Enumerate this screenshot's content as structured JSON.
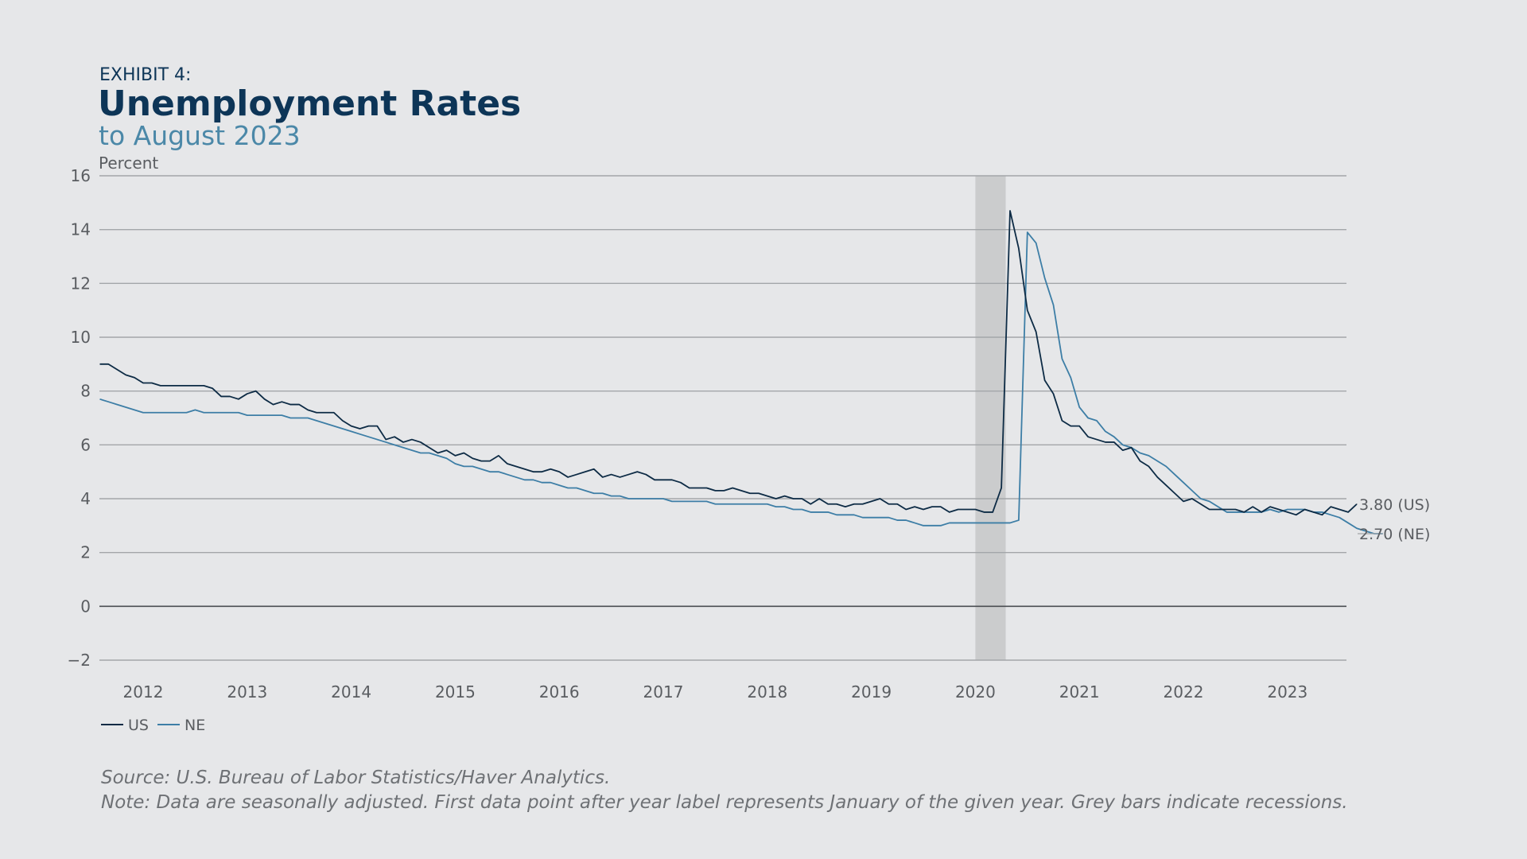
{
  "header": {
    "exhibit": "EXHIBIT 4:",
    "title": "Unemployment Rates",
    "subtitle": "to August 2023"
  },
  "colors": {
    "background": "#e6e7e9",
    "US": "#0d2b45",
    "NE": "#3d7ea6",
    "recession": "#cbcccd",
    "grid": "#a3a6a9"
  },
  "chart_data": {
    "type": "line",
    "ylabel": "Percent",
    "ylim": [
      -2,
      16
    ],
    "yticks": [
      "16",
      "14",
      "12",
      "10",
      "8",
      "6",
      "4",
      "2",
      "0",
      "−2"
    ],
    "xticks": [
      "2012",
      "2013",
      "2014",
      "2015",
      "2016",
      "2017",
      "2018",
      "2019",
      "2020",
      "2021",
      "2022",
      "2023"
    ],
    "grid": true,
    "legend": "bottom-left",
    "recession": {
      "start": "2020-02",
      "end": "2020-04"
    },
    "end_labels": [
      "3.80 (US)",
      "2.70 (NE)"
    ],
    "series": [
      {
        "name": "US",
        "x_start": "2011-08",
        "values": [
          9.0,
          9.0,
          8.8,
          8.6,
          8.5,
          8.3,
          8.3,
          8.2,
          8.2,
          8.2,
          8.2,
          8.2,
          8.2,
          8.1,
          7.8,
          7.8,
          7.7,
          7.9,
          8.0,
          7.7,
          7.5,
          7.6,
          7.5,
          7.5,
          7.3,
          7.2,
          7.2,
          7.2,
          6.9,
          6.7,
          6.6,
          6.7,
          6.7,
          6.2,
          6.3,
          6.1,
          6.2,
          6.1,
          5.9,
          5.7,
          5.8,
          5.6,
          5.7,
          5.5,
          5.4,
          5.4,
          5.6,
          5.3,
          5.2,
          5.1,
          5.0,
          5.0,
          5.1,
          5.0,
          4.8,
          4.9,
          5.0,
          5.1,
          4.8,
          4.9,
          4.8,
          4.9,
          5.0,
          4.9,
          4.7,
          4.7,
          4.7,
          4.6,
          4.4,
          4.4,
          4.4,
          4.3,
          4.3,
          4.4,
          4.3,
          4.2,
          4.2,
          4.1,
          4.0,
          4.1,
          4.0,
          4.0,
          3.8,
          4.0,
          3.8,
          3.8,
          3.7,
          3.8,
          3.8,
          3.9,
          4.0,
          3.8,
          3.8,
          3.6,
          3.7,
          3.6,
          3.7,
          3.7,
          3.5,
          3.6,
          3.6,
          3.6,
          3.5,
          3.5,
          4.4,
          14.7,
          13.3,
          11.0,
          10.2,
          8.4,
          7.9,
          6.9,
          6.7,
          6.7,
          6.3,
          6.2,
          6.1,
          6.1,
          5.8,
          5.9,
          5.4,
          5.2,
          4.8,
          4.5,
          4.2,
          3.9,
          4.0,
          3.8,
          3.6,
          3.6,
          3.6,
          3.6,
          3.5,
          3.7,
          3.5,
          3.7,
          3.6,
          3.5,
          3.4,
          3.6,
          3.5,
          3.4,
          3.7,
          3.6,
          3.5,
          3.8
        ]
      },
      {
        "name": "NE",
        "x_start": "2011-08",
        "values": [
          7.7,
          7.6,
          7.5,
          7.4,
          7.3,
          7.2,
          7.2,
          7.2,
          7.2,
          7.2,
          7.2,
          7.3,
          7.2,
          7.2,
          7.2,
          7.2,
          7.2,
          7.1,
          7.1,
          7.1,
          7.1,
          7.1,
          7.0,
          7.0,
          7.0,
          6.9,
          6.8,
          6.7,
          6.6,
          6.5,
          6.4,
          6.3,
          6.2,
          6.1,
          6.0,
          5.9,
          5.8,
          5.7,
          5.7,
          5.6,
          5.5,
          5.3,
          5.2,
          5.2,
          5.1,
          5.0,
          5.0,
          4.9,
          4.8,
          4.7,
          4.7,
          4.6,
          4.6,
          4.5,
          4.4,
          4.4,
          4.3,
          4.2,
          4.2,
          4.1,
          4.1,
          4.0,
          4.0,
          4.0,
          4.0,
          4.0,
          3.9,
          3.9,
          3.9,
          3.9,
          3.9,
          3.8,
          3.8,
          3.8,
          3.8,
          3.8,
          3.8,
          3.8,
          3.7,
          3.7,
          3.6,
          3.6,
          3.5,
          3.5,
          3.5,
          3.4,
          3.4,
          3.4,
          3.3,
          3.3,
          3.3,
          3.3,
          3.2,
          3.2,
          3.1,
          3.0,
          3.0,
          3.0,
          3.1,
          3.1,
          3.1,
          3.1,
          3.1,
          3.1,
          3.1,
          3.1,
          3.2,
          13.9,
          13.5,
          12.2,
          11.2,
          9.2,
          8.5,
          7.4,
          7.0,
          6.9,
          6.5,
          6.3,
          6.0,
          5.9,
          5.7,
          5.6,
          5.4,
          5.2,
          4.9,
          4.6,
          4.3,
          4.0,
          3.9,
          3.7,
          3.5,
          3.5,
          3.5,
          3.5,
          3.5,
          3.6,
          3.5,
          3.6,
          3.6,
          3.6,
          3.5,
          3.5,
          3.4,
          3.3,
          3.1,
          2.9,
          2.8,
          2.7,
          2.7
        ]
      }
    ]
  },
  "footer": {
    "source": "Source: U.S. Bureau of Labor Statistics/Haver Analytics.",
    "note": "Note: Data are seasonally adjusted. First data point after year label represents January of the given year. Grey bars indicate recessions."
  }
}
